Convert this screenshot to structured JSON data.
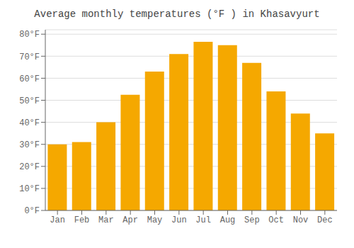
{
  "chart_data": {
    "type": "bar",
    "title": "Average monthly temperatures (°F ) in Khasavyurt",
    "categories": [
      "Jan",
      "Feb",
      "Mar",
      "Apr",
      "May",
      "Jun",
      "Jul",
      "Aug",
      "Sep",
      "Oct",
      "Nov",
      "Dec"
    ],
    "values": [
      30,
      31,
      40,
      52.5,
      63,
      71,
      76.5,
      75,
      67,
      54,
      44,
      35
    ],
    "color": "#F5A800",
    "ylim": [
      0,
      82
    ],
    "yticks": [
      {
        "value": 0,
        "label": "0°F"
      },
      {
        "value": 10,
        "label": "10°F"
      },
      {
        "value": 20,
        "label": "20°F"
      },
      {
        "value": 30,
        "label": "30°F"
      },
      {
        "value": 40,
        "label": "40°F"
      },
      {
        "value": 50,
        "label": "50°F"
      },
      {
        "value": 60,
        "label": "60°F"
      },
      {
        "value": 70,
        "label": "70°F"
      },
      {
        "value": 80,
        "label": "80°F"
      }
    ],
    "grid": true
  }
}
